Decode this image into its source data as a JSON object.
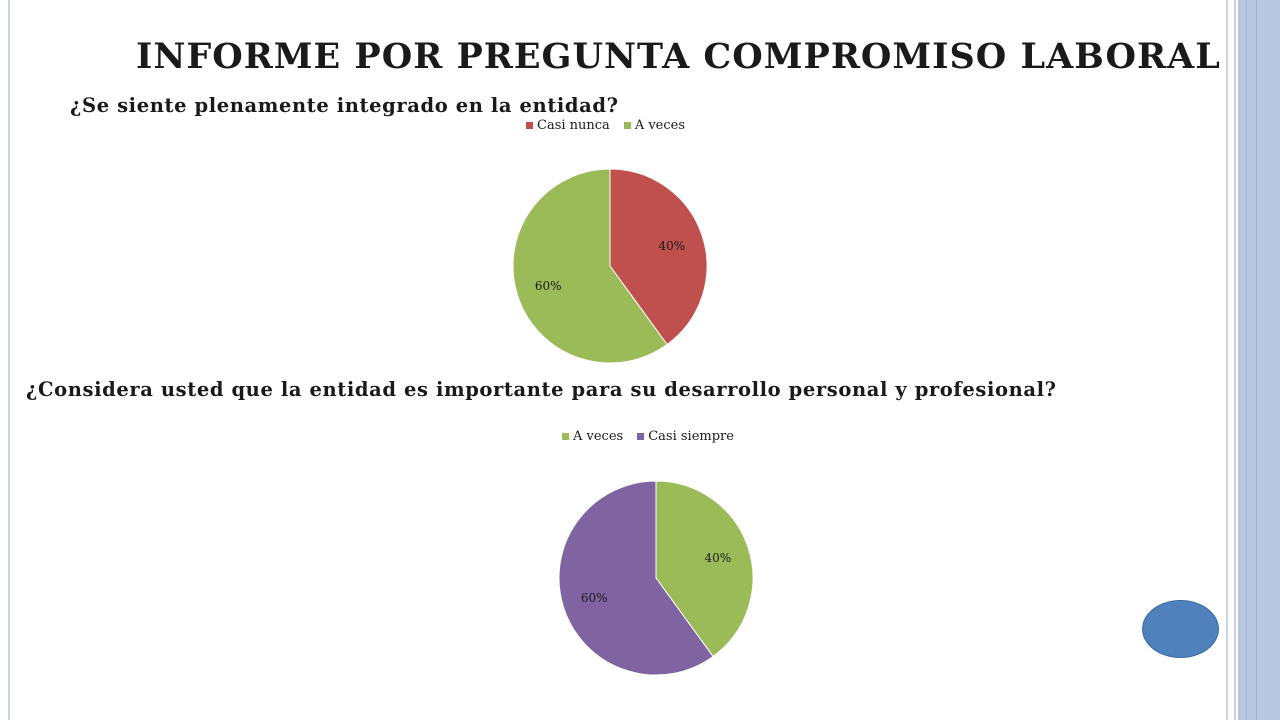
{
  "slide": {
    "title": "INFORME POR PREGUNTA COMPROMISO LABORAL",
    "accent_color": "#4f81bd"
  },
  "chart_data": [
    {
      "type": "pie",
      "title": "¿Se siente plenamente integrado en la entidad?",
      "categories": [
        "Casi nunca",
        "A veces"
      ],
      "values": [
        40,
        60
      ],
      "labels": [
        "40%",
        "60%"
      ],
      "colors": [
        "#c0504d",
        "#9bbb59"
      ],
      "legend": "top"
    },
    {
      "type": "pie",
      "title": "¿Considera usted que la entidad es importante para su desarrollo personal y profesional?",
      "categories": [
        "A veces",
        "Casi siempre"
      ],
      "values": [
        40,
        60
      ],
      "labels": [
        "40%",
        "60%"
      ],
      "colors": [
        "#9bbb59",
        "#8064a2"
      ],
      "legend": "top"
    }
  ]
}
